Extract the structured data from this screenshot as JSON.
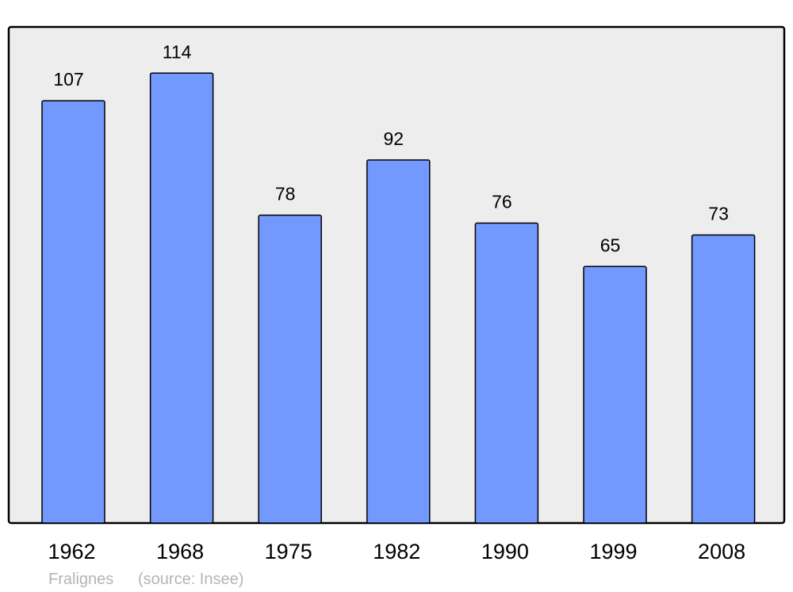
{
  "chart_data": {
    "type": "bar",
    "categories": [
      "1962",
      "1968",
      "1975",
      "1982",
      "1990",
      "1999",
      "2008"
    ],
    "values": [
      107,
      114,
      78,
      92,
      76,
      65,
      73
    ],
    "title": "",
    "xlabel": "",
    "ylabel": "",
    "ylim": [
      0,
      125.7
    ],
    "grid": false,
    "data_labels": true,
    "colors": {
      "bar": "#7399ff",
      "plot_background": "#ededed",
      "border": "#000000",
      "footer_text": "#b4b4b4"
    }
  },
  "footer": {
    "place": "Fralignes",
    "source": "(source: Insee)"
  }
}
